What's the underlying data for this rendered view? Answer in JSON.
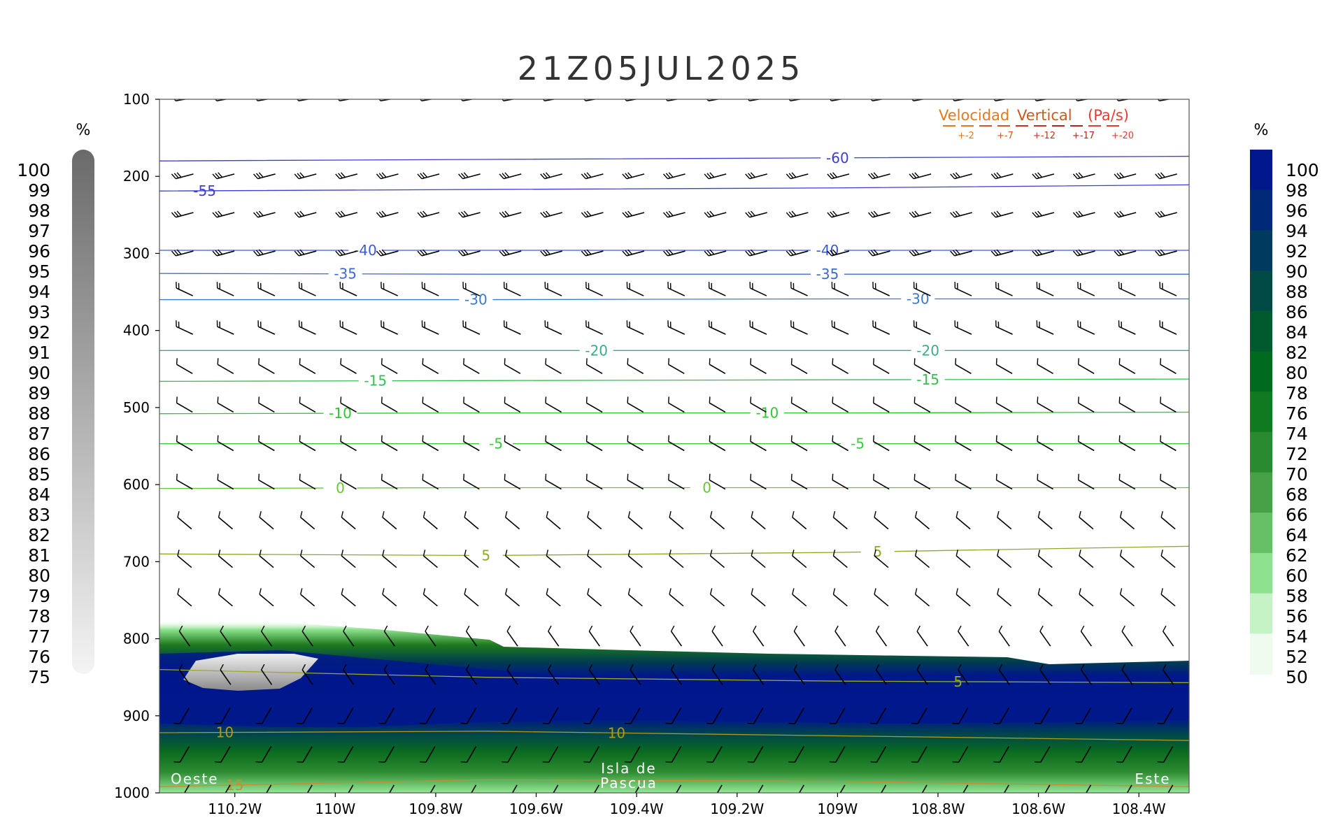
{
  "chart_data": {
    "type": "heatmap",
    "title": "21Z05JUL2025",
    "x_ticks": [
      "110.2W",
      "110W",
      "109.8W",
      "109.6W",
      "109.4W",
      "109.2W",
      "109W",
      "108.8W",
      "108.6W",
      "108.4W"
    ],
    "x_tick_values": [
      -110.2,
      -110.0,
      -109.8,
      -109.6,
      -109.4,
      -109.2,
      -109.0,
      -108.8,
      -108.6,
      -108.4
    ],
    "xlim": [
      -110.35,
      -108.3
    ],
    "y_ticks": [
      "100",
      "200",
      "300",
      "400",
      "500",
      "600",
      "700",
      "800",
      "900",
      "1000"
    ],
    "y_tick_values": [
      100,
      200,
      300,
      400,
      500,
      600,
      700,
      800,
      900,
      1000
    ],
    "ylim": [
      100,
      1000
    ],
    "left_colorbar": {
      "unit": "%",
      "labels": [
        "100",
        "99",
        "98",
        "97",
        "96",
        "95",
        "94",
        "93",
        "92",
        "91",
        "90",
        "89",
        "88",
        "87",
        "86",
        "85",
        "84",
        "83",
        "82",
        "81",
        "80",
        "79",
        "78",
        "77",
        "76",
        "75"
      ],
      "colors": [
        "#6a6a6a",
        "#f4f4f4"
      ]
    },
    "right_colorbar": {
      "unit": "%",
      "labels": [
        "100",
        "98",
        "96",
        "94",
        "92",
        "90",
        "88",
        "86",
        "84",
        "82",
        "80",
        "78",
        "76",
        "74",
        "72",
        "70",
        "68",
        "66",
        "64",
        "62",
        "60",
        "58",
        "56",
        "54",
        "52",
        "50"
      ],
      "colors": [
        "#00188c",
        "#002a78",
        "#003a5e",
        "#004a46",
        "#005a2e",
        "#006a1e",
        "#107a20",
        "#2a8a30",
        "#45a046",
        "#66c066",
        "#8ee28e",
        "#c6f3c6",
        "#eefbee"
      ]
    },
    "temperature_isotherms": [
      {
        "label": "-60",
        "pressure": [
          180,
          178,
          176,
          174
        ],
        "color": "#3c3cd6",
        "label_at": [
          -109.0
        ]
      },
      {
        "label": "-55",
        "pressure": [
          219,
          217,
          215,
          211
        ],
        "color": "#3c3cd6",
        "label_at": [
          -110.26
        ]
      },
      {
        "label": "-40",
        "pressure": [
          296,
          296,
          296,
          296
        ],
        "color": "#3c5ad2",
        "label_at": [
          -109.94,
          -109.02
        ]
      },
      {
        "label": "-35",
        "pressure": [
          326,
          327,
          327,
          327
        ],
        "color": "#3c6ad2",
        "label_at": [
          -109.98,
          -109.02
        ]
      },
      {
        "label": "-30",
        "pressure": [
          360,
          360,
          359,
          359
        ],
        "color": "#3c7ac8",
        "label_at": [
          -109.72,
          -108.84
        ]
      },
      {
        "label": "-20",
        "pressure": [
          426,
          426,
          426,
          426
        ],
        "color": "#3caa8c",
        "label_at": [
          -109.48,
          -108.82
        ]
      },
      {
        "label": "-15",
        "pressure": [
          466,
          465,
          464,
          463
        ],
        "color": "#34c050",
        "label_at": [
          -109.92,
          -108.82
        ]
      },
      {
        "label": "-10",
        "pressure": [
          508,
          507,
          507,
          506
        ],
        "color": "#2cc82c",
        "label_at": [
          -109.99,
          -109.14
        ]
      },
      {
        "label": "-5",
        "pressure": [
          547,
          547,
          547,
          547
        ],
        "color": "#3cc83c",
        "label_at": [
          -109.68,
          -108.96
        ]
      },
      {
        "label": "0",
        "pressure": [
          605,
          604,
          604,
          604
        ],
        "color": "#64c832",
        "label_at": [
          -109.99,
          -109.26
        ]
      },
      {
        "label": "5",
        "pressure": [
          690,
          692,
          688,
          680
        ],
        "color": "#8caa28",
        "label_at": [
          -109.7,
          -108.92
        ]
      },
      {
        "label": "5",
        "pressure": [
          840,
          850,
          855,
          857
        ],
        "color": "#9aaa20",
        "label_at": [
          -108.76
        ]
      },
      {
        "label": "10",
        "pressure": [
          922,
          920,
          926,
          932
        ],
        "color": "#aa9a20",
        "label_at": [
          -110.22,
          -109.44
        ]
      },
      {
        "label": "15",
        "pressure": [
          992,
          983,
          985,
          992
        ],
        "color": "#c88c32",
        "label_at": [
          -110.2
        ]
      }
    ],
    "annotations": [
      "Oeste",
      "Isla de",
      "Pascua",
      "Este"
    ],
    "vertical_velocity_legend": {
      "title_words": [
        "Velocidad",
        "Vertical",
        "(Pa/s)"
      ],
      "levels": [
        "+-2",
        "+-7",
        "+-12",
        "+-17",
        "+-20"
      ],
      "colors": [
        "#e6781e",
        "#d25a1e",
        "#c8321e",
        "#aa281e",
        "#e63c32"
      ]
    },
    "wind_barb_levels": [
      100,
      200,
      250,
      300,
      350,
      400,
      450,
      500,
      550,
      600,
      650,
      700,
      750,
      800,
      850,
      900,
      950,
      1000
    ],
    "grid": false
  }
}
